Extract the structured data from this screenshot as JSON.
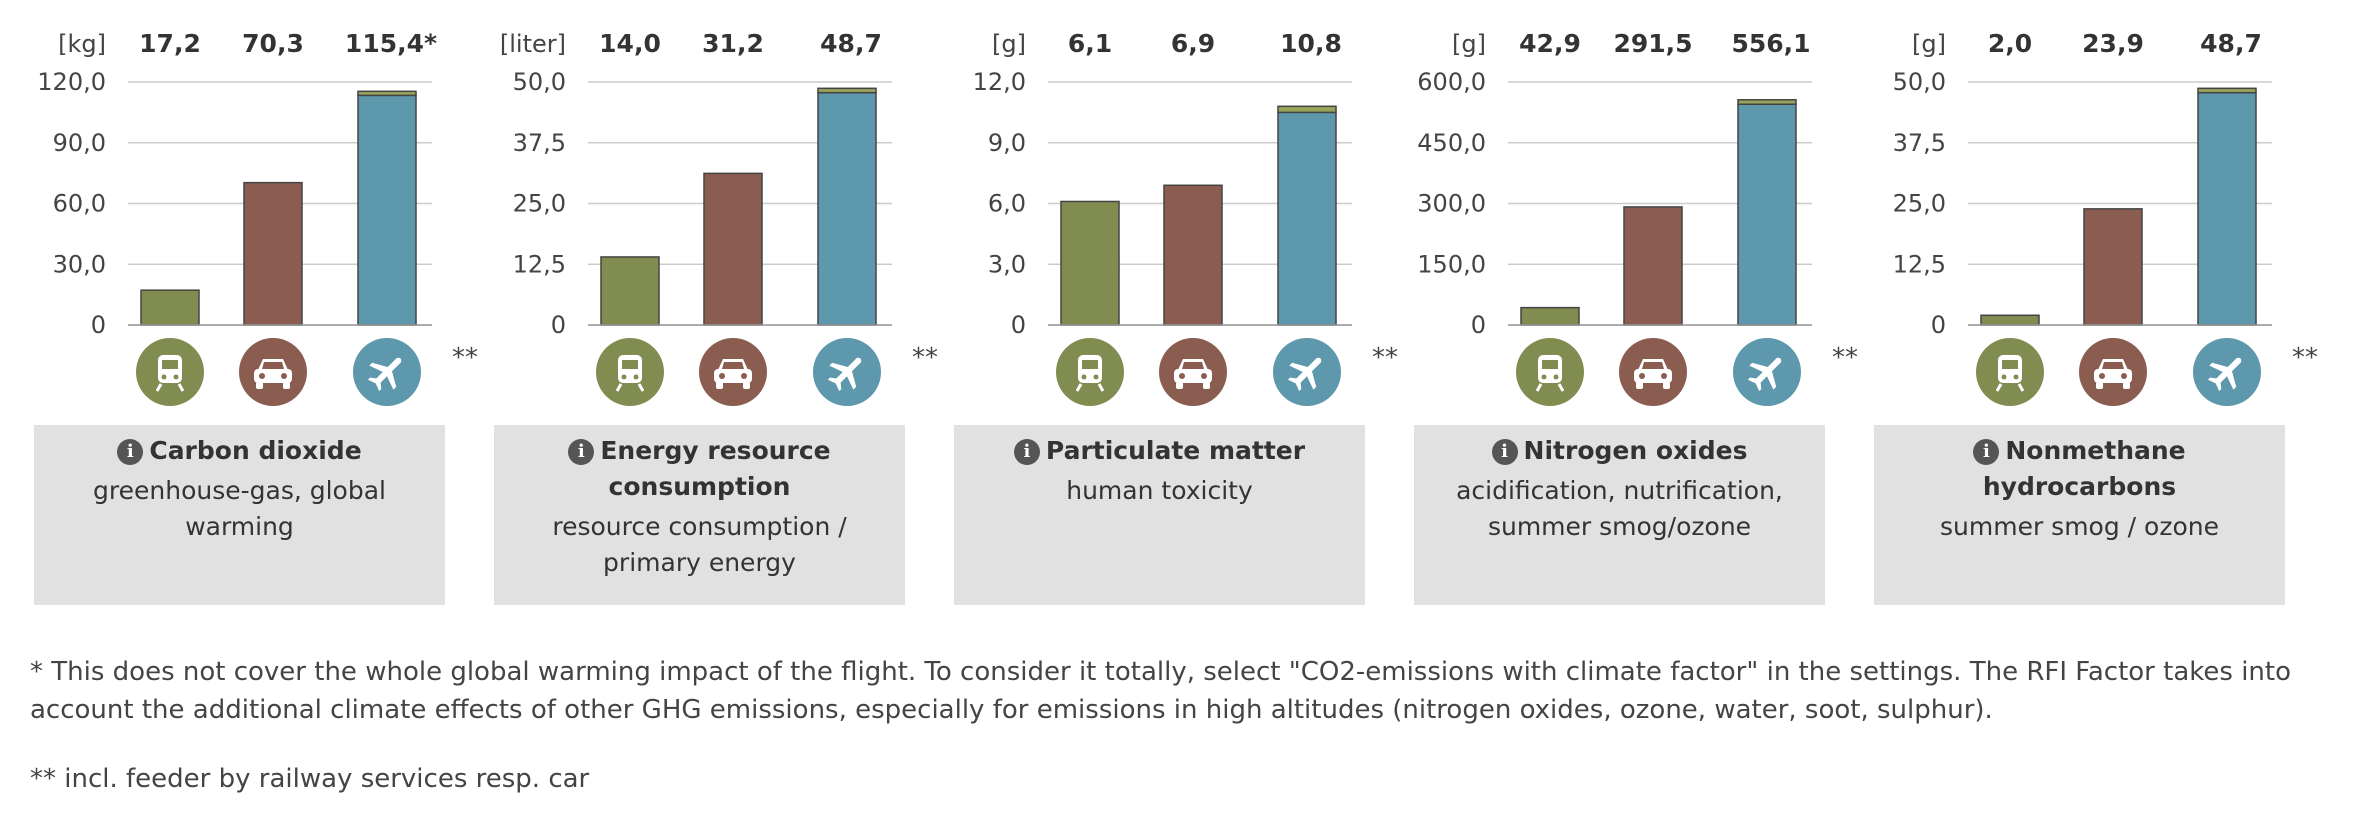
{
  "colors": {
    "train": "#818c51",
    "car": "#8b5d51",
    "plane": "#5e98ad",
    "plane_top": "#9aa35a",
    "grid": "#cccccc"
  },
  "icons": {
    "train": "train-icon",
    "car": "car-icon",
    "plane": "plane-icon",
    "info": "info-icon"
  },
  "chart_data": [
    {
      "type": "bar",
      "unit": "[kg]",
      "categories": [
        "train",
        "car",
        "plane"
      ],
      "values": [
        17.2,
        70.3,
        115.4
      ],
      "segments": {
        "plane": {
          "base": 113.4,
          "top": 2.0
        }
      },
      "value_labels": [
        "17,2",
        "70,3",
        "115,4*"
      ],
      "yticks": [
        "0",
        "30,0",
        "60,0",
        "90,0",
        "120,0"
      ],
      "ylim": [
        0,
        120
      ],
      "title": "Carbon dioxide",
      "description": "greenhouse-gas, global warming",
      "note": "**"
    },
    {
      "type": "bar",
      "unit": "[liter]",
      "categories": [
        "train",
        "car",
        "plane"
      ],
      "values": [
        14.0,
        31.2,
        48.7
      ],
      "segments": {
        "plane": {
          "base": 47.8,
          "top": 0.9
        }
      },
      "value_labels": [
        "14,0",
        "31,2",
        "48,7"
      ],
      "yticks": [
        "0",
        "12,5",
        "25,0",
        "37,5",
        "50,0"
      ],
      "ylim": [
        0,
        50
      ],
      "title": "Energy resource consumption",
      "description": "resource consumption / primary energy",
      "note": "**"
    },
    {
      "type": "bar",
      "unit": "[g]",
      "categories": [
        "train",
        "car",
        "plane"
      ],
      "values": [
        6.1,
        6.9,
        10.8
      ],
      "segments": {
        "plane": {
          "base": 10.5,
          "top": 0.3
        }
      },
      "value_labels": [
        "6,1",
        "6,9",
        "10,8"
      ],
      "yticks": [
        "0",
        "3,0",
        "6,0",
        "9,0",
        "12,0"
      ],
      "ylim": [
        0,
        12
      ],
      "title": "Particulate matter",
      "description": "human toxicity",
      "note": "**"
    },
    {
      "type": "bar",
      "unit": "[g]",
      "categories": [
        "train",
        "car",
        "plane"
      ],
      "values": [
        42.9,
        291.5,
        556.1
      ],
      "segments": {
        "plane": {
          "base": 545.1,
          "top": 11.0
        }
      },
      "value_labels": [
        "42,9",
        "291,5",
        "556,1"
      ],
      "yticks": [
        "0",
        "150,0",
        "300,0",
        "450,0",
        "600,0"
      ],
      "ylim": [
        0,
        600
      ],
      "title": "Nitrogen oxides",
      "description": "acidification, nutrification, summer smog/ozone",
      "note": "**"
    },
    {
      "type": "bar",
      "unit": "[g]",
      "categories": [
        "train",
        "car",
        "plane"
      ],
      "values": [
        2.0,
        23.9,
        48.7
      ],
      "segments": {
        "plane": {
          "base": 47.8,
          "top": 0.9
        }
      },
      "value_labels": [
        "2,0",
        "23,9",
        "48,7"
      ],
      "yticks": [
        "0",
        "12,5",
        "25,0",
        "37,5",
        "50,0"
      ],
      "ylim": [
        0,
        50
      ],
      "title": "Nonmethane hydrocarbons",
      "description": "summer smog / ozone",
      "note": "**"
    }
  ],
  "footnotes": {
    "climate": "* This does not cover the whole global warming impact of the flight. To consider it totally, select \"CO2-emissions with climate factor\" in the settings. The RFI Factor takes into account the additional climate effects of other GHG emissions, especially for emissions in high altitudes (nitrogen oxides, ozone, water, soot, sulphur).",
    "feeder": "** incl. feeder by railway services resp. car"
  }
}
